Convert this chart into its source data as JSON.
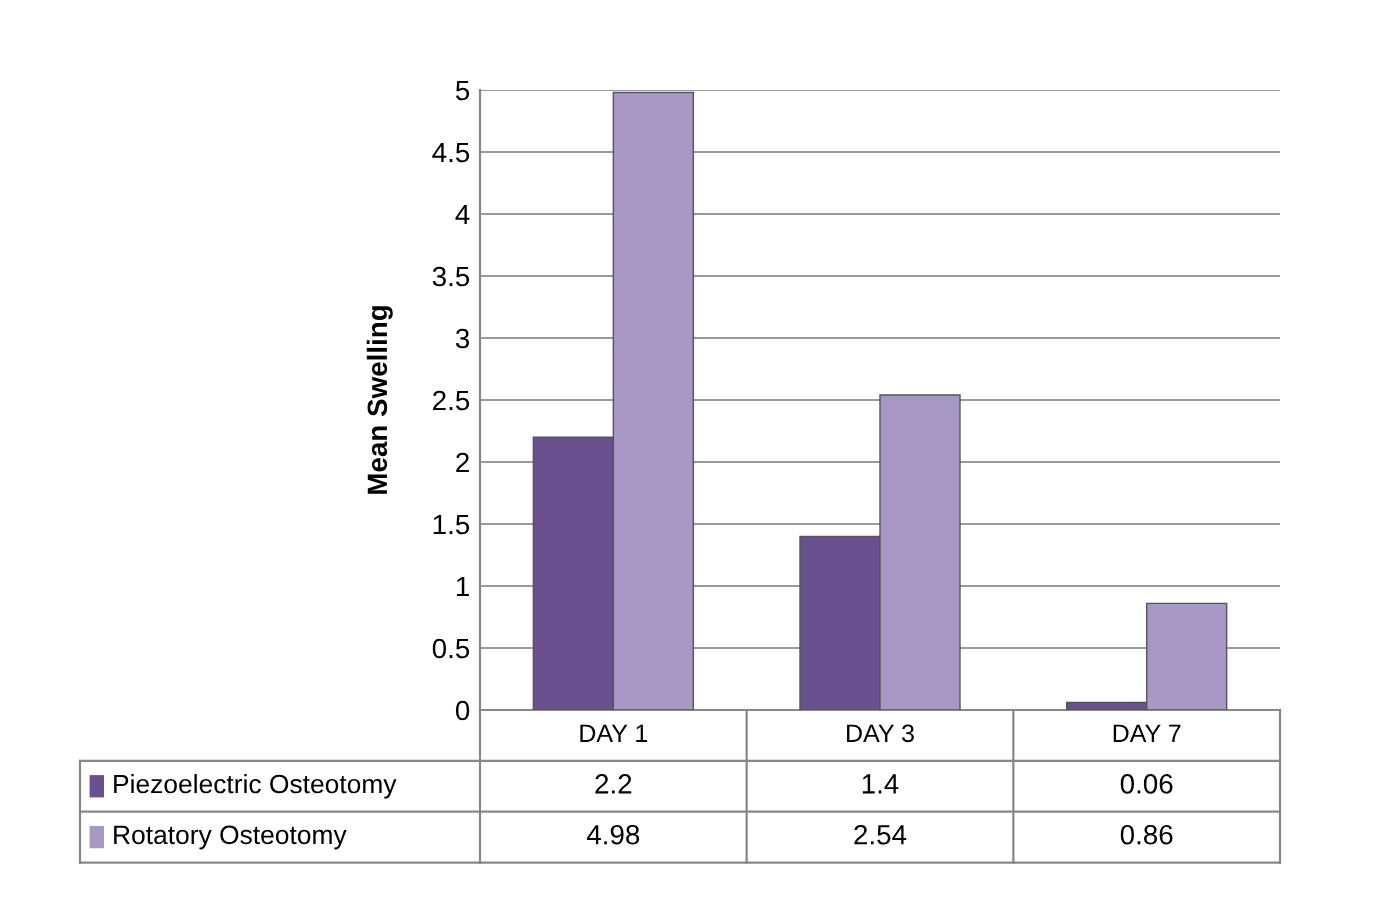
{
  "chart_data": {
    "type": "bar",
    "ylabel": "Mean Swelling",
    "categories": [
      "DAY 1",
      "DAY 3",
      "DAY 7"
    ],
    "series": [
      {
        "name": "Piezoelectric Osteotomy",
        "color": "#6b5090",
        "values": [
          2.2,
          1.4,
          0.06
        ]
      },
      {
        "name": "Rotatory Osteotomy",
        "color": "#a898c6",
        "values": [
          4.98,
          2.54,
          0.86
        ]
      }
    ],
    "ylim": [
      0,
      5
    ],
    "yticks": [
      0,
      0.5,
      1,
      1.5,
      2,
      2.5,
      3,
      3.5,
      4,
      4.5,
      5
    ],
    "grid": "y",
    "data_labels": true,
    "legend": "bottom"
  }
}
